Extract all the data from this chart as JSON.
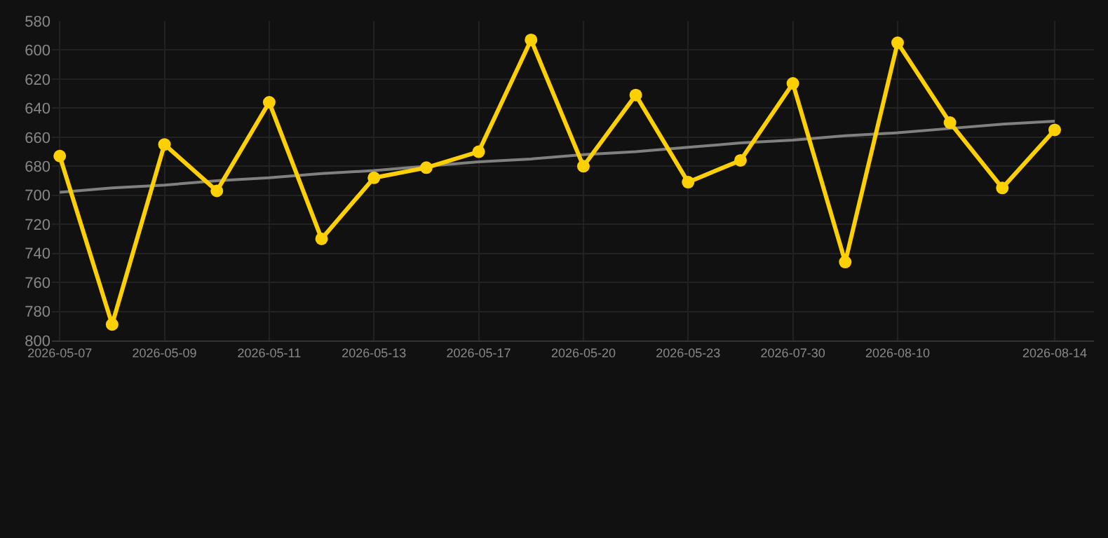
{
  "chart_data": {
    "type": "line",
    "categories": [
      "2026-05-07",
      null,
      "2026-05-09",
      null,
      "2026-05-11",
      null,
      "2026-05-13",
      null,
      "2026-05-17",
      null,
      "2026-05-20",
      null,
      "2026-05-23",
      null,
      "2026-07-30",
      null,
      "2026-08-10",
      null,
      null,
      "2026-08-14"
    ],
    "series": [
      {
        "color": "#ffd000",
        "marker": "circle",
        "values": [
          673,
          789,
          665,
          697,
          636,
          730,
          688,
          681,
          670,
          593,
          680,
          631,
          691,
          676,
          623,
          746,
          595,
          650,
          695,
          655
        ]
      },
      {
        "color": "#808080",
        "marker": "none",
        "values": [
          698,
          695,
          693,
          690,
          688,
          685,
          683,
          680,
          677,
          675,
          672,
          670,
          667,
          664,
          662,
          659,
          657,
          654,
          651,
          649
        ]
      }
    ],
    "ylim": [
      800,
      580
    ],
    "yticks": [
      580,
      600,
      620,
      640,
      660,
      680,
      700,
      720,
      740,
      760,
      780,
      800
    ],
    "grid": true,
    "line_style": "solid"
  }
}
